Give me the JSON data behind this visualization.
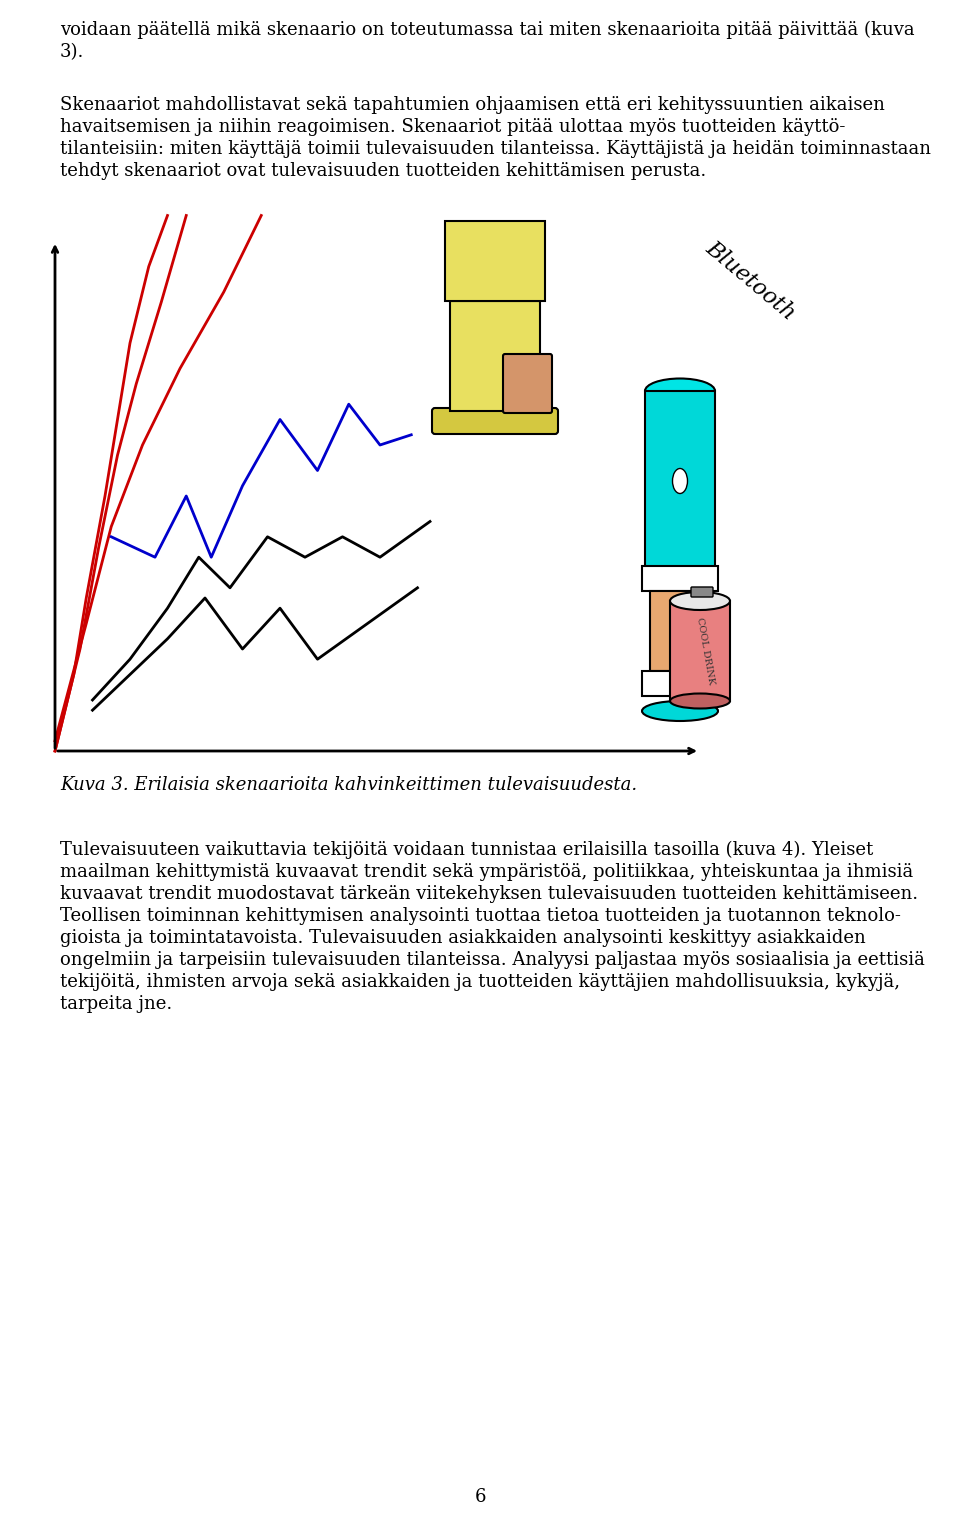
{
  "page_text_top": "voidaan päätellä mikä skenaario on toteutumassa tai miten skenaarioita pitää päivittää (kuva 3).",
  "para1": "Skenaariot mahdollistavat sekä tapahtumien ohjaamisen että eri kehityssuuntien aikaisen havaitsemisen ja niihin reagoimisen. Skenaariot pitää ulottaa myös tuotteiden käyttö-tilanteisiin: miten käyttäjä toimii tulevaisuuden tilanteissa. Käyttäjistä ja heidän toiminnastaan tehdyt skenaariot ovat tulevaisuuden tuotteiden kehittämisen perusta.",
  "caption": "Kuva 3. Erilaisia skenaarioita kahvinkeittimen tulevaisuudesta.",
  "para2": "Tulevaisuuteen vaikuttavia tekijöitä voidaan tunnistaa erilaisilla tasoilla (kuva 4). Yleiset maailman kehittymistä kuvaavat trendit sekä ympäristöä, politiikkaa, yhteiskuntaa ja ihmisiä kuvaavat trendit muodostavat tärkeän viitekehyksen tulevaisuuden tuotteiden kehittämiseen. Teollisen toiminnan kehittymisen analysointi tuottaa tietoa tuotteiden ja tuotannon teknologioista ja toimintatavoista. Tulevaisuuden asiakkaiden analysointi keskittyy asiakkaiden ongelmiin ja tarpeisiin tulevaisuuden tilanteissa. Analyysi paljastaa myös sosiaalisia ja eettisiä tekijöitä, ihmisten arvoja sekä asiakkaiden ja tuotteiden käyttäjien mahdollisuuksia, kykyjä, tarpeita jne.",
  "page_num": "6",
  "bg_color": "#ffffff",
  "text_color": "#000000",
  "red_color": "#cc0000",
  "blue_color": "#0000cc",
  "black_color": "#000000"
}
